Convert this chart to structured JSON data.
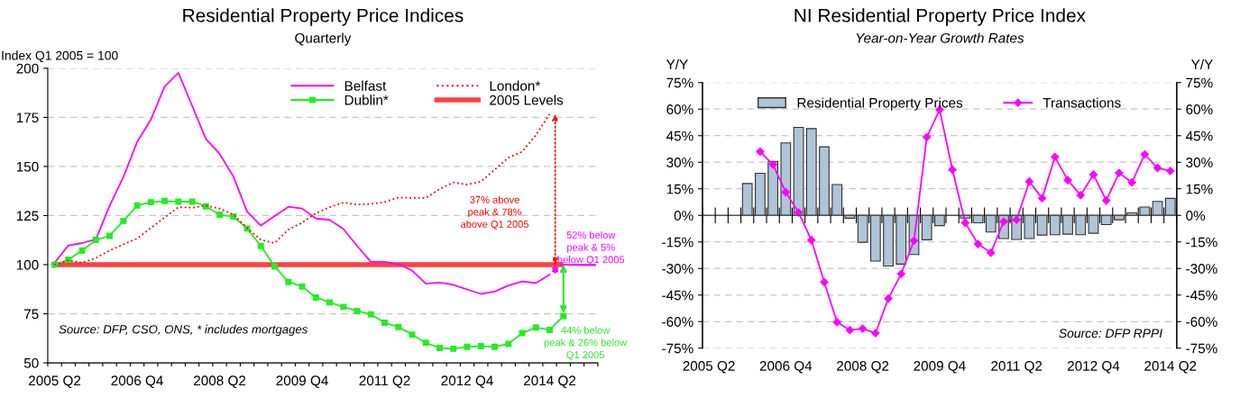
{
  "chart_data": [
    {
      "type": "line",
      "title": "Residential Property Price Indices",
      "subtitle": "Quarterly",
      "ylabel": "Index Q1 2005 = 100",
      "categories": [
        "2005 Q2",
        null,
        null,
        null,
        null,
        null,
        "2006 Q4",
        null,
        null,
        null,
        null,
        null,
        "2008 Q2",
        null,
        null,
        null,
        null,
        null,
        "2009 Q4",
        null,
        null,
        null,
        null,
        null,
        "2011 Q2",
        null,
        null,
        null,
        null,
        null,
        "2012 Q4",
        null,
        null,
        null,
        null,
        null,
        "2014 Q2",
        null,
        null,
        null
      ],
      "series": [
        {
          "name": "Belfast",
          "color": "#ff00ff",
          "marker": "none",
          "line_style": "solid",
          "values": [
            101,
            109.8,
            111,
            112.9,
            130,
            144.6,
            162.5,
            173.9,
            190.7,
            197.7,
            180.9,
            164,
            156.4,
            144.9,
            127,
            119.9,
            124.8,
            129.5,
            128.6,
            123.5,
            122.8,
            118.2,
            109.5,
            101.4,
            101.4,
            100.3,
            97,
            90.3,
            90.9,
            89.7,
            87.4,
            85.1,
            86.3,
            89.4,
            91.5,
            90.6,
            95,
            null,
            null,
            null
          ]
        },
        {
          "name": "Dublin*",
          "color": "#22ee22",
          "marker": "square",
          "line_style": "solid",
          "values": [
            100,
            102.5,
            107.2,
            112.6,
            114.7,
            122.3,
            130.1,
            131.8,
            132.4,
            132.1,
            132.1,
            129.7,
            125.4,
            124.5,
            118.4,
            109.5,
            99.1,
            91.2,
            88.9,
            83.3,
            80.8,
            78.5,
            76.4,
            74.7,
            70.4,
            68.3,
            64.4,
            60.2,
            57.6,
            57.2,
            58.2,
            58.5,
            58.2,
            59.7,
            65.2,
            68,
            66.8,
            73.9,
            null,
            null
          ]
        },
        {
          "name": "London*",
          "color": "#ff0000",
          "marker": "none",
          "line_style": "dotted",
          "values": [
            100,
            102.2,
            101,
            103.4,
            107.2,
            110.3,
            113.3,
            118.7,
            124,
            129.3,
            129,
            130.1,
            128.6,
            125.5,
            118.7,
            112.6,
            111,
            117.9,
            121.4,
            126.2,
            129.3,
            131.6,
            130.6,
            130.9,
            131.9,
            134.2,
            134,
            134,
            138.5,
            141.9,
            140.8,
            142.3,
            148.4,
            154.5,
            157.5,
            166,
            176.7,
            null,
            null,
            null
          ]
        }
      ],
      "ref_lines": [
        {
          "axis": "y",
          "value": 100,
          "label": "2005 Levels",
          "color": "#ff4040"
        }
      ],
      "ylim": [
        50,
        200
      ],
      "yticks": [
        50,
        75,
        100,
        125,
        150,
        175,
        200
      ],
      "grid": "y",
      "legend": "top right",
      "annotations": [
        "Source: DFP, CSO, ONS, * includes mortgages",
        "37% above\npeak & 78%\nabove Q1 2005",
        "52% below\npeak & 5%\nbelow Q1 2005",
        "44% below\npeak & 26% below\nQ1 2005"
      ]
    },
    {
      "type": "bar",
      "title": "NI Residential Property Price Index",
      "subtitle": "Year-on-Year Growth Rates",
      "ylabel": "Y/Y",
      "y2label": "Y/Y",
      "categories": [
        "2005 Q2",
        null,
        null,
        null,
        null,
        null,
        "2006 Q4",
        null,
        null,
        null,
        null,
        null,
        "2008 Q2",
        null,
        null,
        null,
        null,
        null,
        "2009 Q4",
        null,
        null,
        null,
        null,
        null,
        "2011 Q2",
        null,
        null,
        null,
        null,
        null,
        "2012 Q4",
        null,
        null,
        null,
        null,
        null,
        "2014 Q2"
      ],
      "series": [
        {
          "name": "Residential Property Prices",
          "type": "bar",
          "color": "#b0c4d8",
          "values": [
            null,
            null,
            null,
            18,
            23.8,
            30.4,
            40.9,
            49.7,
            49,
            38.7,
            17.4,
            -1.6,
            -15.2,
            -25.8,
            -28.6,
            -27.5,
            -22.1,
            -13.8,
            -5.8,
            null,
            -1.5,
            -4.2,
            -9.4,
            -13.1,
            -13.6,
            -13.1,
            -11.1,
            -10.9,
            -10.6,
            -10.9,
            -10.1,
            -5.2,
            -2.5,
            1.4,
            4.7,
            7.9,
            9.6
          ]
        },
        {
          "name": "Transactions",
          "type": "line",
          "color": "#ff00ff",
          "marker": "diamond",
          "line_style": "solid",
          "values": [
            null,
            null,
            null,
            null,
            36,
            28.7,
            13.1,
            1.6,
            -14,
            -37.7,
            -60.3,
            -64.8,
            -64,
            -66.5,
            -47,
            -33.1,
            -14.3,
            44.2,
            59.7,
            25.8,
            -4.2,
            -16.2,
            -21.1,
            -3.5,
            -2.5,
            19.1,
            9.7,
            33,
            19.9,
            11.4,
            23,
            8.4,
            24,
            18.6,
            34.4,
            26.8,
            25.1
          ]
        }
      ],
      "ylim": [
        -75,
        75
      ],
      "yticks": [
        {
          "value": -75,
          "label": "-75%"
        },
        {
          "value": -60,
          "label": "-60%"
        },
        {
          "value": -45,
          "label": "-45%"
        },
        {
          "value": -30,
          "label": "-30%"
        },
        {
          "value": -15,
          "label": "-15%"
        },
        {
          "value": 0,
          "label": "0%"
        },
        {
          "value": 15,
          "label": "15%"
        },
        {
          "value": 30,
          "label": "30%"
        },
        {
          "value": 45,
          "label": "45%"
        },
        {
          "value": 60,
          "label": "60%"
        },
        {
          "value": 75,
          "label": "75%"
        }
      ],
      "y2lim": [
        -75,
        75
      ],
      "y2ticks": [
        {
          "value": -75,
          "label": "-75%"
        },
        {
          "value": -60,
          "label": "-60%"
        },
        {
          "value": -45,
          "label": "-45%"
        },
        {
          "value": -30,
          "label": "-30%"
        },
        {
          "value": -15,
          "label": "-15%"
        },
        {
          "value": 0,
          "label": "0%"
        },
        {
          "value": 15,
          "label": "15%"
        },
        {
          "value": 30,
          "label": "30%"
        },
        {
          "value": 45,
          "label": "45%"
        },
        {
          "value": 60,
          "label": "60%"
        },
        {
          "value": 75,
          "label": "75%"
        }
      ],
      "grid": "y",
      "legend": "top",
      "annotations": [
        "Source: DFP RPPI"
      ]
    }
  ]
}
